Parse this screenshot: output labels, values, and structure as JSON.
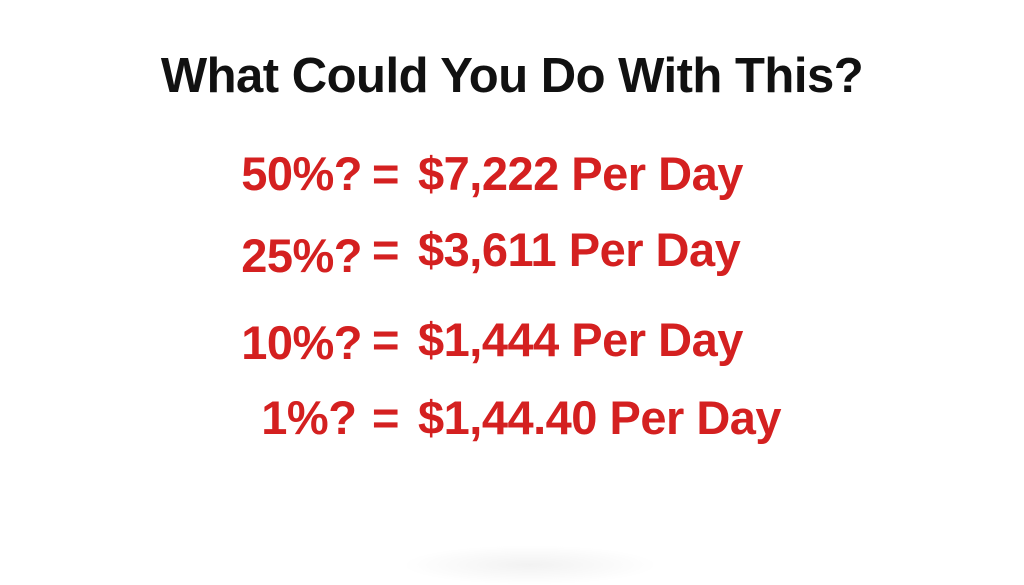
{
  "title": "What Could You Do With This?",
  "accent_color": "#d42020",
  "rows": [
    {
      "percent": "50%?",
      "equals": "=",
      "value": "$7,222 Per Day"
    },
    {
      "percent": "25%?",
      "equals": "=",
      "value": "$3,611 Per Day"
    },
    {
      "percent": "10%?",
      "equals": "=",
      "value": "$1,444 Per Day"
    },
    {
      "percent": "1%? ",
      "equals": "=",
      "value": "$1,44.40 Per Day"
    }
  ]
}
